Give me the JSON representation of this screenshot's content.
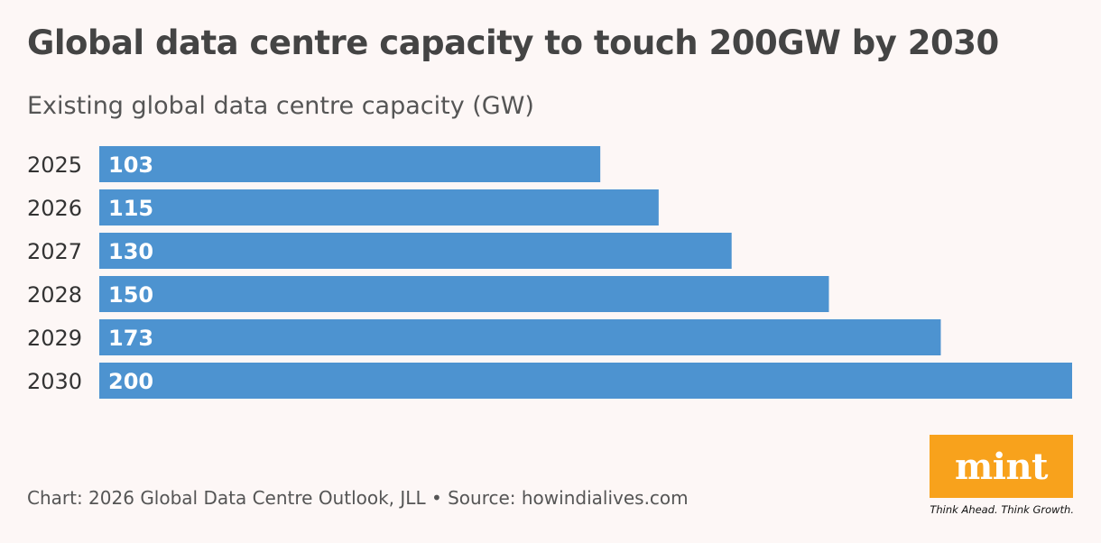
{
  "chart_data": {
    "type": "bar",
    "orientation": "horizontal",
    "title": "Global data centre capacity to touch 200GW by 2030",
    "subtitle": "Existing global data centre capacity (GW)",
    "categories": [
      "2025",
      "2026",
      "2027",
      "2028",
      "2029",
      "2030"
    ],
    "values": [
      103,
      115,
      130,
      150,
      173,
      200
    ],
    "xlim": [
      0,
      200
    ],
    "bar_color": "#4d93d0",
    "grid": false,
    "legend": "none"
  },
  "footer": {
    "source": "Chart: 2026 Global Data Centre Outlook, JLL • Source: howindialives.com"
  },
  "brand": {
    "logo_text": "mint",
    "tagline": "Think Ahead. Think Growth.",
    "color": "#f8a21c"
  }
}
